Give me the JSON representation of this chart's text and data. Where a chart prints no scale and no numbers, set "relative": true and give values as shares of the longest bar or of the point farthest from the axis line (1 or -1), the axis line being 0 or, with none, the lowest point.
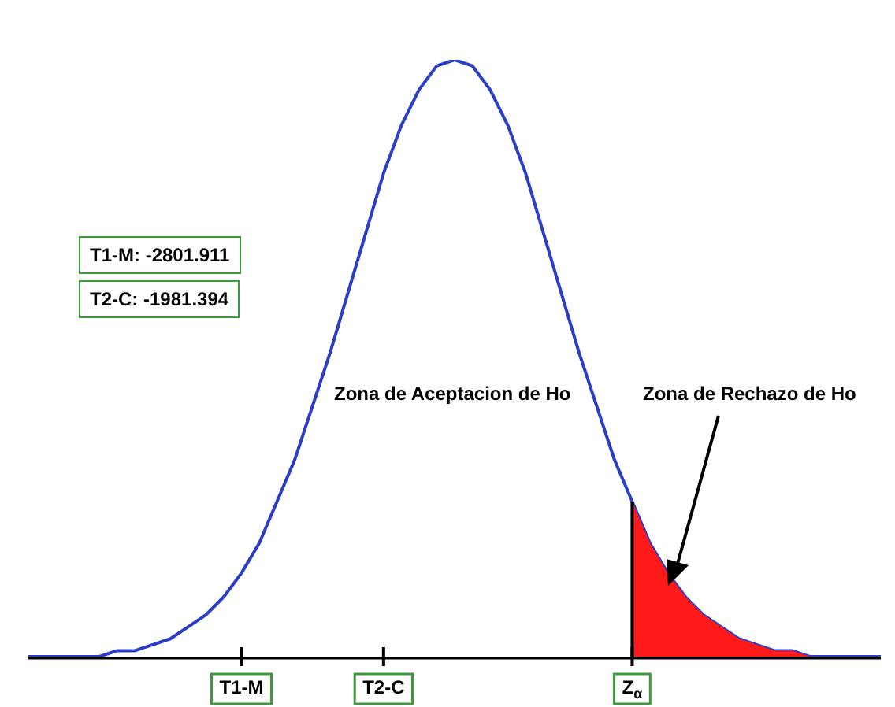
{
  "chart_data": {
    "type": "line",
    "relative": true,
    "legend": false,
    "marker": "none",
    "line_style": "solid",
    "categories": [
      null,
      null,
      null,
      null,
      null,
      null,
      null,
      null,
      null,
      null,
      null,
      null,
      "T1-M",
      null,
      null,
      null,
      null,
      null,
      null,
      null,
      "T2-C",
      null,
      null,
      null,
      null,
      null,
      null,
      null,
      null,
      null,
      null,
      null,
      null,
      null,
      "Z$_{α}$",
      null,
      null,
      null,
      null,
      null,
      null,
      null,
      null,
      null,
      null,
      null,
      null,
      null,
      null
    ],
    "series": [
      {
        "color": "#2b3fc6",
        "values": [
          0.0,
          0.0,
          0.0,
          0.0,
          0.0,
          0.01,
          0.01,
          0.02,
          0.03,
          0.05,
          0.07,
          0.1,
          0.14,
          0.19,
          0.26,
          0.33,
          0.42,
          0.51,
          0.61,
          0.71,
          0.81,
          0.89,
          0.95,
          0.99,
          1.0,
          0.99,
          0.95,
          0.89,
          0.81,
          0.71,
          0.61,
          0.51,
          0.42,
          0.33,
          0.26,
          0.19,
          0.14,
          0.1,
          0.07,
          0.05,
          0.03,
          0.02,
          0.01,
          0.01,
          0.0,
          0.0,
          0.0,
          0.0,
          0.0
        ]
      },
      {
        "type": "area",
        "color": "#ff1a1a",
        "values": [
          null,
          null,
          null,
          null,
          null,
          null,
          null,
          null,
          null,
          null,
          null,
          null,
          null,
          null,
          null,
          null,
          null,
          null,
          null,
          null,
          null,
          null,
          null,
          null,
          null,
          null,
          null,
          null,
          null,
          null,
          null,
          null,
          null,
          null,
          0.26,
          0.19,
          0.14,
          0.1,
          0.07,
          0.05,
          0.03,
          0.02,
          0.01,
          0.01,
          0.0,
          0.0,
          0.0,
          0.0,
          0.0
        ]
      }
    ],
    "ref_lines": [
      {
        "axis": "x",
        "value": "Z$_{α}$",
        "color": "#000000"
      }
    ],
    "annotations": [
      "T1-M: -2801.911",
      "T2-C: -1981.394",
      "Zona de Aceptacion de Ho",
      "Zona de Rechazo de Ho"
    ]
  }
}
